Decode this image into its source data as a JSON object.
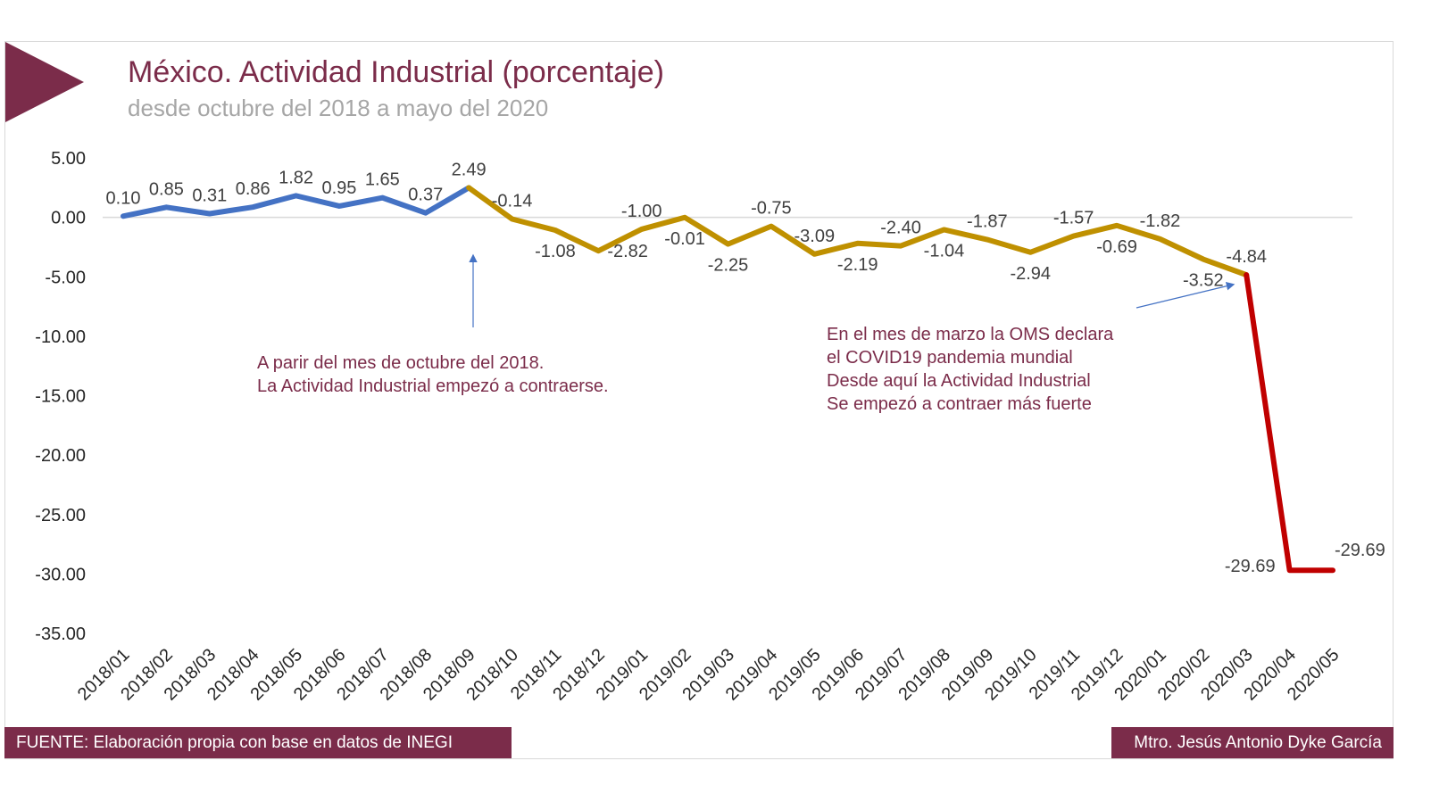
{
  "chart_data": {
    "type": "line",
    "title": "México. Actividad Industrial (porcentaje)",
    "subtitle": "desde octubre del 2018 a mayo del 2020",
    "xlabel": "",
    "ylabel": "",
    "ylim": [
      -35,
      5
    ],
    "yticks": [
      "5.00",
      "0.00",
      "-5.00",
      "-10.00",
      "-15.00",
      "-20.00",
      "-25.00",
      "-30.00",
      "-35.00"
    ],
    "ytick_values": [
      5,
      0,
      -5,
      -10,
      -15,
      -20,
      -25,
      -30,
      -35
    ],
    "categories": [
      "2018/01",
      "2018/02",
      "2018/03",
      "2018/04",
      "2018/05",
      "2018/06",
      "2018/07",
      "2018/08",
      "2018/09",
      "2018/10",
      "2018/11",
      "2018/12",
      "2019/01",
      "2019/02",
      "2019/03",
      "2019/04",
      "2019/05",
      "2019/06",
      "2019/07",
      "2019/08",
      "2019/09",
      "2019/10",
      "2019/11",
      "2019/12",
      "2020/01",
      "2020/02",
      "2020/03",
      "2020/04",
      "2020/05"
    ],
    "values": [
      0.1,
      0.85,
      0.31,
      0.86,
      1.82,
      0.95,
      1.65,
      0.37,
      2.49,
      -0.14,
      -1.08,
      -2.82,
      -1.0,
      -0.01,
      -2.25,
      -0.75,
      -3.09,
      -2.19,
      -2.4,
      -1.04,
      -1.87,
      -2.94,
      -1.57,
      -0.69,
      -1.82,
      -3.52,
      -4.84,
      -29.69,
      -29.69
    ],
    "data_labels": [
      "0.10",
      "0.85",
      "0.31",
      "0.86",
      "1.82",
      "0.95",
      "1.65",
      "0.37",
      "2.49",
      "-0.14",
      "-1.08",
      "-2.82",
      "-1.00",
      "-0.01",
      "-2.25",
      "-0.75",
      "-3.09",
      "-2.19",
      "-2.40",
      "-1.04",
      "-1.87",
      "-2.94",
      "-1.57",
      "-0.69",
      "-1.82",
      "-3.52",
      "-4.84",
      "-29.69",
      "-29.69"
    ],
    "segments": [
      {
        "from": "2018/01",
        "to": "2018/09",
        "color": "#4472c4"
      },
      {
        "from": "2018/09",
        "to": "2020/03",
        "color": "#bf9000"
      },
      {
        "from": "2020/03",
        "to": "2020/05",
        "color": "#c00000"
      }
    ],
    "grid": false,
    "zero_line": true,
    "annotations": [
      {
        "lines": [
          "A parir del mes de octubre del 2018.",
          "La Actividad Industrial empezó a contraerse."
        ],
        "points_to": "2018/09"
      },
      {
        "lines": [
          "En el mes de marzo la OMS declara",
          "el COVID19 pandemia mundial",
          "Desde aquí la Actividad Industrial",
          "Se empezó a contraer más fuerte"
        ],
        "points_to": "2020/03"
      }
    ]
  },
  "colors": {
    "brand": "#7b2c4a",
    "subtitle": "#a6a6a6",
    "arrow": "#4472c4"
  },
  "footer": {
    "source": "FUENTE: Elaboración propia con base en datos de INEGI",
    "author": "Mtro. Jesús Antonio Dyke García"
  }
}
